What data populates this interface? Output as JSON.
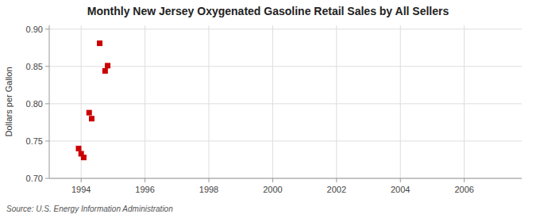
{
  "chart_data": {
    "type": "scatter",
    "title": "Monthly New Jersey Oxygenated Gasoline Retail Sales by All Sellers",
    "ylabel": "Dollars per Gallon",
    "source": "Source: U.S. Energy Information Administration",
    "x": [
      1993.92,
      1994.0,
      1994.08,
      1994.25,
      1994.33,
      1994.58,
      1994.75,
      1994.83
    ],
    "values": [
      0.74,
      0.733,
      0.728,
      0.788,
      0.78,
      0.881,
      0.844,
      0.851
    ],
    "color": "#cc0000",
    "marker": "square",
    "xlim": [
      1993.0,
      2007.8
    ],
    "ylim": [
      0.7,
      0.905
    ],
    "xticks": [
      1994,
      1996,
      1998,
      2000,
      2002,
      2004,
      2006
    ],
    "yticks": [
      {
        "value": 0.7,
        "label": "0.70"
      },
      0.75,
      {
        "value": 0.8,
        "label": "0.80"
      },
      0.85,
      {
        "value": 0.9,
        "label": "0.90"
      }
    ],
    "grid": true
  }
}
